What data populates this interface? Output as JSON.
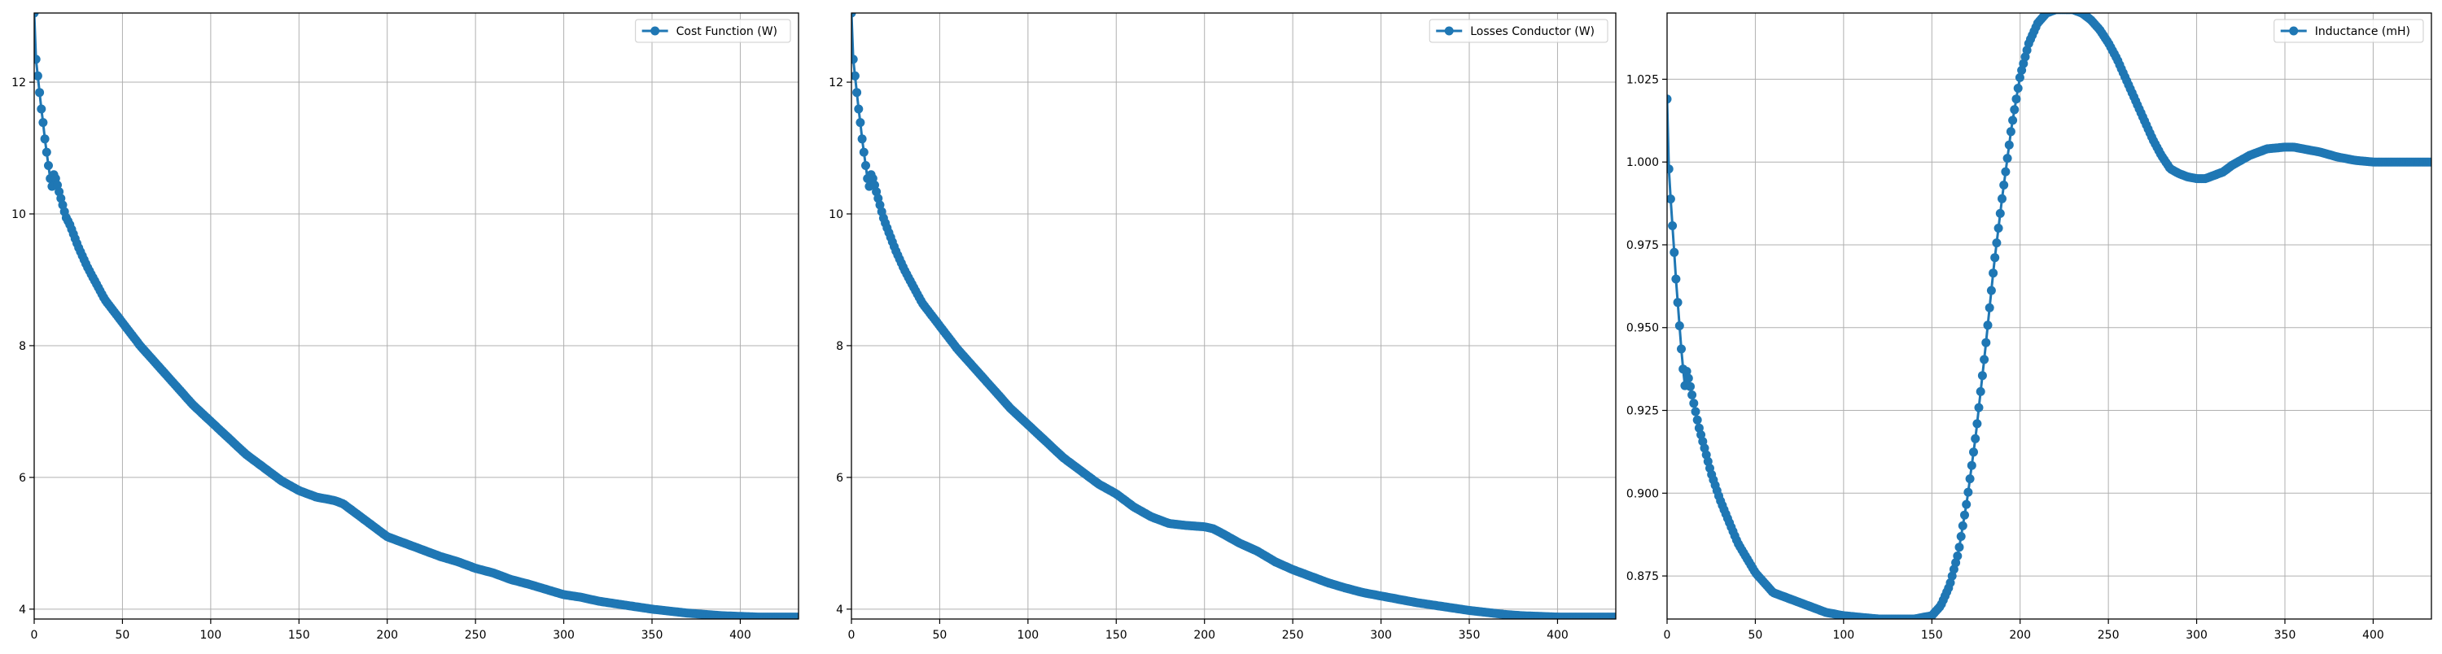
{
  "chart_data": [
    {
      "type": "line",
      "marker": "circle",
      "color": "#1f77b4",
      "xlim": [
        0,
        433
      ],
      "ylim": [
        3.85,
        13.05
      ],
      "xticks": [
        0,
        50,
        100,
        150,
        200,
        250,
        300,
        350,
        400
      ],
      "yticks": [
        4,
        6,
        8,
        10,
        12
      ],
      "ytick_labels": [
        "4",
        "6",
        "8",
        "10",
        "12"
      ],
      "grid": true,
      "legend_position": "top-right",
      "series": [
        {
          "name": "Cost Function (W)",
          "x": [
            0,
            1,
            2,
            3,
            4,
            5,
            6,
            7,
            8,
            9,
            10,
            11,
            12,
            13,
            14,
            16,
            18,
            20,
            25,
            30,
            40,
            50,
            60,
            70,
            80,
            90,
            100,
            110,
            120,
            130,
            140,
            150,
            160,
            170,
            175,
            180,
            190,
            200,
            210,
            220,
            230,
            240,
            250,
            260,
            270,
            280,
            290,
            300,
            310,
            320,
            330,
            340,
            350,
            360,
            370,
            380,
            390,
            400,
            410,
            420,
            433
          ],
          "y": [
            13.05,
            12.35,
            12.1,
            11.85,
            11.6,
            11.4,
            11.15,
            10.95,
            10.75,
            10.55,
            10.4,
            10.6,
            10.55,
            10.45,
            10.35,
            10.15,
            9.95,
            9.85,
            9.5,
            9.2,
            8.7,
            8.35,
            8.0,
            7.7,
            7.4,
            7.1,
            6.85,
            6.6,
            6.35,
            6.15,
            5.95,
            5.8,
            5.7,
            5.65,
            5.6,
            5.5,
            5.3,
            5.1,
            5.0,
            4.9,
            4.8,
            4.72,
            4.62,
            4.55,
            4.45,
            4.38,
            4.3,
            4.22,
            4.18,
            4.12,
            4.08,
            4.04,
            4.0,
            3.97,
            3.94,
            3.92,
            3.9,
            3.89,
            3.88,
            3.88,
            3.88
          ]
        }
      ]
    },
    {
      "type": "line",
      "marker": "circle",
      "color": "#1f77b4",
      "xlim": [
        0,
        433
      ],
      "ylim": [
        3.85,
        13.05
      ],
      "xticks": [
        0,
        50,
        100,
        150,
        200,
        250,
        300,
        350,
        400
      ],
      "yticks": [
        4,
        6,
        8,
        10,
        12
      ],
      "ytick_labels": [
        "4",
        "6",
        "8",
        "10",
        "12"
      ],
      "grid": true,
      "legend_position": "top-right",
      "series": [
        {
          "name": "Losses Conductor (W)",
          "x": [
            0,
            1,
            2,
            3,
            4,
            5,
            6,
            7,
            8,
            9,
            10,
            11,
            12,
            13,
            14,
            16,
            18,
            20,
            25,
            30,
            40,
            50,
            60,
            70,
            80,
            90,
            100,
            110,
            120,
            130,
            140,
            150,
            160,
            170,
            180,
            190,
            200,
            205,
            210,
            220,
            230,
            240,
            250,
            260,
            270,
            280,
            290,
            300,
            310,
            320,
            330,
            340,
            350,
            360,
            370,
            380,
            390,
            400,
            410,
            420,
            433
          ],
          "y": [
            13.05,
            12.35,
            12.1,
            11.85,
            11.6,
            11.4,
            11.15,
            10.95,
            10.75,
            10.55,
            10.4,
            10.6,
            10.55,
            10.45,
            10.35,
            10.15,
            9.95,
            9.8,
            9.45,
            9.15,
            8.65,
            8.3,
            7.95,
            7.65,
            7.35,
            7.05,
            6.8,
            6.55,
            6.3,
            6.1,
            5.9,
            5.75,
            5.55,
            5.4,
            5.3,
            5.27,
            5.25,
            5.22,
            5.15,
            5.0,
            4.88,
            4.72,
            4.6,
            4.5,
            4.4,
            4.32,
            4.25,
            4.2,
            4.15,
            4.1,
            4.06,
            4.02,
            3.98,
            3.95,
            3.92,
            3.9,
            3.89,
            3.88,
            3.88,
            3.88,
            3.88
          ]
        }
      ]
    },
    {
      "type": "line",
      "marker": "circle",
      "color": "#1f77b4",
      "xlim": [
        0,
        433
      ],
      "ylim": [
        0.862,
        1.045
      ],
      "xticks": [
        0,
        50,
        100,
        150,
        200,
        250,
        300,
        350,
        400
      ],
      "yticks": [
        0.875,
        0.9,
        0.925,
        0.95,
        0.975,
        1.0,
        1.025
      ],
      "ytick_labels": [
        "0.875",
        "0.900",
        "0.925",
        "0.950",
        "0.975",
        "1.000",
        "1.025"
      ],
      "grid": true,
      "legend_position": "top-right",
      "series": [
        {
          "name": "Inductance (mH)",
          "x": [
            0,
            1,
            2,
            3,
            4,
            5,
            6,
            7,
            8,
            9,
            10,
            11,
            12,
            14,
            16,
            18,
            20,
            25,
            30,
            40,
            50,
            60,
            70,
            80,
            90,
            100,
            110,
            120,
            130,
            140,
            145,
            150,
            155,
            160,
            165,
            170,
            175,
            180,
            185,
            190,
            195,
            200,
            205,
            210,
            215,
            220,
            225,
            230,
            235,
            240,
            245,
            250,
            255,
            260,
            265,
            270,
            275,
            280,
            285,
            290,
            295,
            300,
            305,
            310,
            315,
            320,
            330,
            340,
            350,
            355,
            360,
            370,
            380,
            390,
            400,
            410,
            420,
            433
          ],
          "y": [
            1.019,
            0.998,
            0.989,
            0.981,
            0.973,
            0.965,
            0.958,
            0.951,
            0.944,
            0.938,
            0.932,
            0.937,
            0.935,
            0.93,
            0.925,
            0.92,
            0.916,
            0.906,
            0.898,
            0.885,
            0.876,
            0.87,
            0.868,
            0.866,
            0.864,
            0.863,
            0.8625,
            0.862,
            0.862,
            0.862,
            0.8625,
            0.863,
            0.866,
            0.872,
            0.882,
            0.898,
            0.918,
            0.942,
            0.968,
            0.99,
            1.01,
            1.026,
            1.036,
            1.042,
            1.045,
            1.046,
            1.046,
            1.046,
            1.045,
            1.043,
            1.04,
            1.036,
            1.031,
            1.025,
            1.019,
            1.013,
            1.007,
            1.002,
            0.998,
            0.9965,
            0.9955,
            0.995,
            0.995,
            0.996,
            0.997,
            0.999,
            1.002,
            1.004,
            1.0045,
            1.0045,
            1.004,
            1.003,
            1.0015,
            1.0005,
            1.0,
            1.0,
            1.0,
            1.0
          ]
        }
      ]
    }
  ]
}
